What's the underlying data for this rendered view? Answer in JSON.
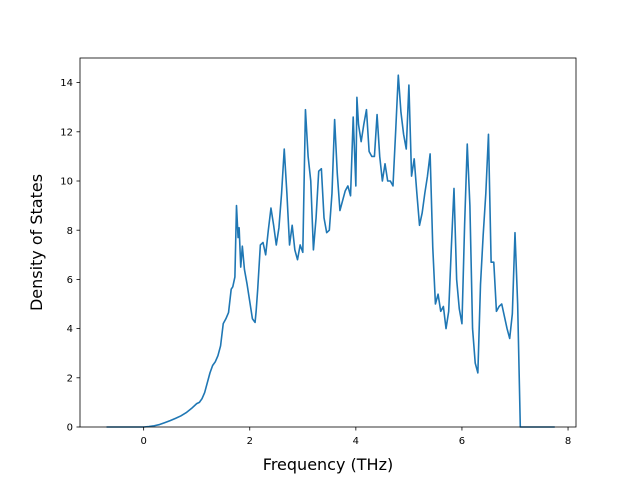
{
  "chart_data": {
    "type": "line",
    "title": "",
    "xlabel": "Frequency (THz)",
    "ylabel": "Density of States",
    "xlim": [
      -1.2,
      8.15
    ],
    "ylim": [
      0,
      15
    ],
    "xticks": [
      0,
      2,
      4,
      6,
      8
    ],
    "yticks": [
      0,
      2,
      4,
      6,
      8,
      10,
      12,
      14
    ],
    "grid": false,
    "legend": "none",
    "line_color": "#1f77b4",
    "series": [
      {
        "x": [
          -0.7,
          -0.5,
          -0.3,
          -0.1,
          0.0,
          0.1,
          0.2,
          0.3,
          0.4,
          0.5,
          0.6,
          0.7,
          0.8,
          0.9,
          1.0,
          1.05,
          1.1,
          1.15,
          1.2,
          1.25,
          1.3,
          1.35,
          1.4,
          1.45,
          1.5,
          1.55,
          1.6,
          1.65,
          1.68,
          1.72,
          1.75,
          1.78,
          1.8,
          1.83,
          1.86,
          1.9,
          1.95,
          2.0,
          2.05,
          2.1,
          2.12,
          2.15,
          2.2,
          2.25,
          2.3,
          2.35,
          2.4,
          2.45,
          2.5,
          2.55,
          2.6,
          2.65,
          2.7,
          2.75,
          2.8,
          2.85,
          2.9,
          2.95,
          3.0,
          3.05,
          3.1,
          3.15,
          3.2,
          3.25,
          3.3,
          3.35,
          3.4,
          3.45,
          3.5,
          3.55,
          3.6,
          3.65,
          3.7,
          3.75,
          3.8,
          3.85,
          3.9,
          3.95,
          4.0,
          4.02,
          4.05,
          4.1,
          4.15,
          4.2,
          4.25,
          4.3,
          4.35,
          4.4,
          4.45,
          4.5,
          4.55,
          4.6,
          4.62,
          4.65,
          4.7,
          4.75,
          4.8,
          4.85,
          4.9,
          4.95,
          5.0,
          5.05,
          5.1,
          5.15,
          5.2,
          5.25,
          5.3,
          5.35,
          5.4,
          5.45,
          5.5,
          5.55,
          5.6,
          5.65,
          5.7,
          5.75,
          5.8,
          5.85,
          5.9,
          5.95,
          6.0,
          6.05,
          6.1,
          6.15,
          6.2,
          6.25,
          6.3,
          6.35,
          6.4,
          6.45,
          6.5,
          6.55,
          6.6,
          6.65,
          6.7,
          6.75,
          6.8,
          6.85,
          6.9,
          6.95,
          7.0,
          7.05,
          7.1,
          7.2,
          7.5,
          7.75
        ],
        "y": [
          0,
          0,
          0,
          0,
          0,
          0.02,
          0.05,
          0.1,
          0.18,
          0.26,
          0.35,
          0.45,
          0.58,
          0.75,
          0.95,
          1.0,
          1.15,
          1.4,
          1.8,
          2.2,
          2.5,
          2.65,
          2.9,
          3.3,
          4.2,
          4.4,
          4.65,
          5.6,
          5.7,
          6.1,
          9.0,
          7.7,
          8.1,
          6.5,
          7.35,
          6.4,
          5.8,
          5.1,
          4.4,
          4.25,
          4.7,
          5.6,
          7.4,
          7.5,
          7.0,
          8.0,
          8.9,
          8.2,
          7.4,
          8.1,
          9.5,
          11.3,
          9.5,
          7.4,
          8.2,
          7.2,
          6.8,
          7.4,
          7.1,
          12.9,
          11.0,
          10.0,
          7.2,
          8.5,
          10.4,
          10.5,
          8.5,
          7.9,
          8.0,
          9.5,
          12.5,
          10.3,
          8.8,
          9.2,
          9.6,
          9.8,
          9.4,
          12.6,
          9.8,
          13.4,
          12.3,
          11.6,
          12.3,
          12.9,
          11.2,
          11.0,
          11.0,
          12.7,
          11.0,
          10.0,
          10.7,
          10.0,
          10.0,
          10.0,
          9.8,
          12.0,
          14.3,
          12.8,
          11.9,
          11.3,
          13.9,
          10.2,
          10.9,
          9.5,
          8.2,
          8.7,
          9.5,
          10.2,
          11.1,
          7.3,
          5.0,
          5.4,
          4.7,
          4.9,
          4.0,
          4.7,
          7.3,
          9.7,
          6.0,
          4.8,
          4.2,
          8.2,
          11.5,
          9.0,
          4.0,
          2.6,
          2.2,
          5.8,
          7.8,
          9.5,
          11.9,
          6.7,
          6.7,
          4.7,
          4.9,
          5.0,
          4.5,
          4.0,
          3.6,
          4.6,
          7.9,
          5.0,
          0,
          0,
          0,
          0
        ]
      }
    ]
  }
}
